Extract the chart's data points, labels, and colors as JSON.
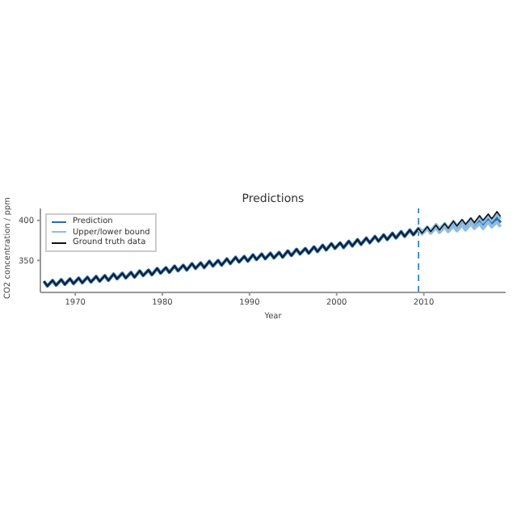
{
  "chart_data": {
    "type": "line",
    "title": "Predictions",
    "xlabel": "Year",
    "ylabel": "CO2 concentration / ppm",
    "xlim": [
      1966,
      2019.4
    ],
    "xticks": [
      1970,
      1980,
      1990,
      2000,
      2010
    ],
    "ylim": [
      310,
      415
    ],
    "yticks": [
      350,
      400
    ],
    "grid": false,
    "legend": "top left",
    "marker": "none",
    "x": [
      1966.4,
      1966.8,
      1967.4,
      1967.8,
      1968.4,
      1968.8,
      1969.4,
      1969.8,
      1970.4,
      1970.8,
      1971.4,
      1971.8,
      1972.4,
      1972.8,
      1973.4,
      1973.8,
      1974.4,
      1974.8,
      1975.4,
      1975.8,
      1976.4,
      1976.8,
      1977.4,
      1977.8,
      1978.4,
      1978.8,
      1979.4,
      1979.8,
      1980.4,
      1980.8,
      1981.4,
      1981.8,
      1982.4,
      1982.8,
      1983.4,
      1983.8,
      1984.4,
      1984.8,
      1985.4,
      1985.8,
      1986.4,
      1986.8,
      1987.4,
      1987.8,
      1988.4,
      1988.8,
      1989.4,
      1989.8,
      1990.4,
      1990.8,
      1991.4,
      1991.8,
      1992.4,
      1992.8,
      1993.4,
      1993.8,
      1994.4,
      1994.8,
      1995.4,
      1995.8,
      1996.4,
      1996.8,
      1997.4,
      1997.8,
      1998.4,
      1998.8,
      1999.4,
      1999.8,
      2000.4,
      2000.8,
      2001.4,
      2001.8,
      2002.4,
      2002.8,
      2003.4,
      2003.8,
      2004.4,
      2004.8,
      2005.4,
      2005.8,
      2006.4,
      2006.8,
      2007.4,
      2007.8,
      2008.4,
      2008.8,
      2009.4,
      2009.8,
      2010.4,
      2010.8,
      2011.4,
      2011.8,
      2012.4,
      2012.8,
      2013.4,
      2013.8,
      2014.4,
      2014.8,
      2015.4,
      2015.8,
      2016.4,
      2016.8,
      2017.4,
      2017.8,
      2018.4,
      2018.8
    ],
    "series": [
      {
        "name": "Prediction",
        "color": "#2a6db0",
        "values": [
          324,
          318,
          325,
          319,
          326,
          320,
          327,
          321,
          328,
          322,
          329,
          323,
          330,
          324,
          331,
          325,
          333,
          327,
          334,
          328,
          335,
          329,
          337,
          331,
          338,
          332,
          340,
          334,
          341,
          335,
          343,
          337,
          344,
          338,
          346,
          340,
          347,
          341,
          349,
          343,
          350,
          344,
          352,
          346,
          354,
          348,
          355,
          349,
          357,
          351,
          358,
          352,
          359,
          353,
          360,
          354,
          362,
          356,
          364,
          358,
          365,
          359,
          367,
          361,
          369,
          363,
          371,
          365,
          372,
          366,
          374,
          368,
          376,
          370,
          378,
          372,
          380,
          374,
          382,
          376,
          384,
          378,
          386,
          380,
          388,
          382,
          390,
          384,
          391,
          385,
          393,
          387,
          394,
          388,
          396,
          390,
          397,
          391,
          399,
          393,
          400,
          394,
          402,
          396,
          403,
          397
        ]
      },
      {
        "name": "Upper/lower bound",
        "color": "#8fbde0",
        "x": [
          2009.4,
          2009.8,
          2010.4,
          2010.8,
          2011.4,
          2011.8,
          2012.4,
          2012.8,
          2013.4,
          2013.8,
          2014.4,
          2014.8,
          2015.4,
          2015.8,
          2016.4,
          2016.8,
          2017.4,
          2017.8,
          2018.4,
          2018.8
        ],
        "values": [
          391,
          385,
          392,
          386,
          395,
          389,
          396,
          390,
          399,
          393,
          400,
          394,
          402,
          396,
          404,
          398,
          406,
          400,
          408,
          402
        ]
      },
      {
        "color": "#8fbde0",
        "x": [
          2009.4,
          2009.8,
          2010.4,
          2010.8,
          2011.4,
          2011.8,
          2012.4,
          2012.8,
          2013.4,
          2013.8,
          2014.4,
          2014.8,
          2015.4,
          2015.8,
          2016.4,
          2016.8,
          2017.4,
          2017.8,
          2018.4,
          2018.8
        ],
        "values": [
          389,
          383,
          390,
          384,
          391,
          385,
          392,
          386,
          393,
          387,
          394,
          388,
          396,
          390,
          396,
          390,
          398,
          392,
          398,
          392
        ]
      },
      {
        "name": "Ground truth data",
        "color": "#111111",
        "values": [
          324,
          318,
          325,
          319,
          326,
          320,
          327,
          321,
          328,
          322,
          329,
          323,
          330,
          324,
          331,
          325,
          333,
          327,
          334,
          328,
          335,
          329,
          337,
          331,
          338,
          332,
          340,
          334,
          341,
          335,
          343,
          337,
          344,
          338,
          346,
          340,
          347,
          341,
          349,
          343,
          350,
          344,
          352,
          346,
          354,
          348,
          355,
          349,
          357,
          351,
          358,
          352,
          359,
          353,
          360,
          354,
          362,
          356,
          364,
          358,
          365,
          359,
          367,
          361,
          369,
          363,
          371,
          365,
          372,
          366,
          374,
          368,
          376,
          370,
          378,
          372,
          380,
          374,
          382,
          376,
          384,
          378,
          386,
          380,
          388,
          382,
          390,
          384,
          392,
          386,
          394,
          388,
          396,
          390,
          399,
          393,
          401,
          395,
          403,
          397,
          406,
          400,
          408,
          402,
          411,
          405
        ]
      }
    ],
    "ref_lines": [
      {
        "axis": "x",
        "value": 2009.4,
        "color": "#1f77b4",
        "line_style": "dashed"
      }
    ]
  }
}
